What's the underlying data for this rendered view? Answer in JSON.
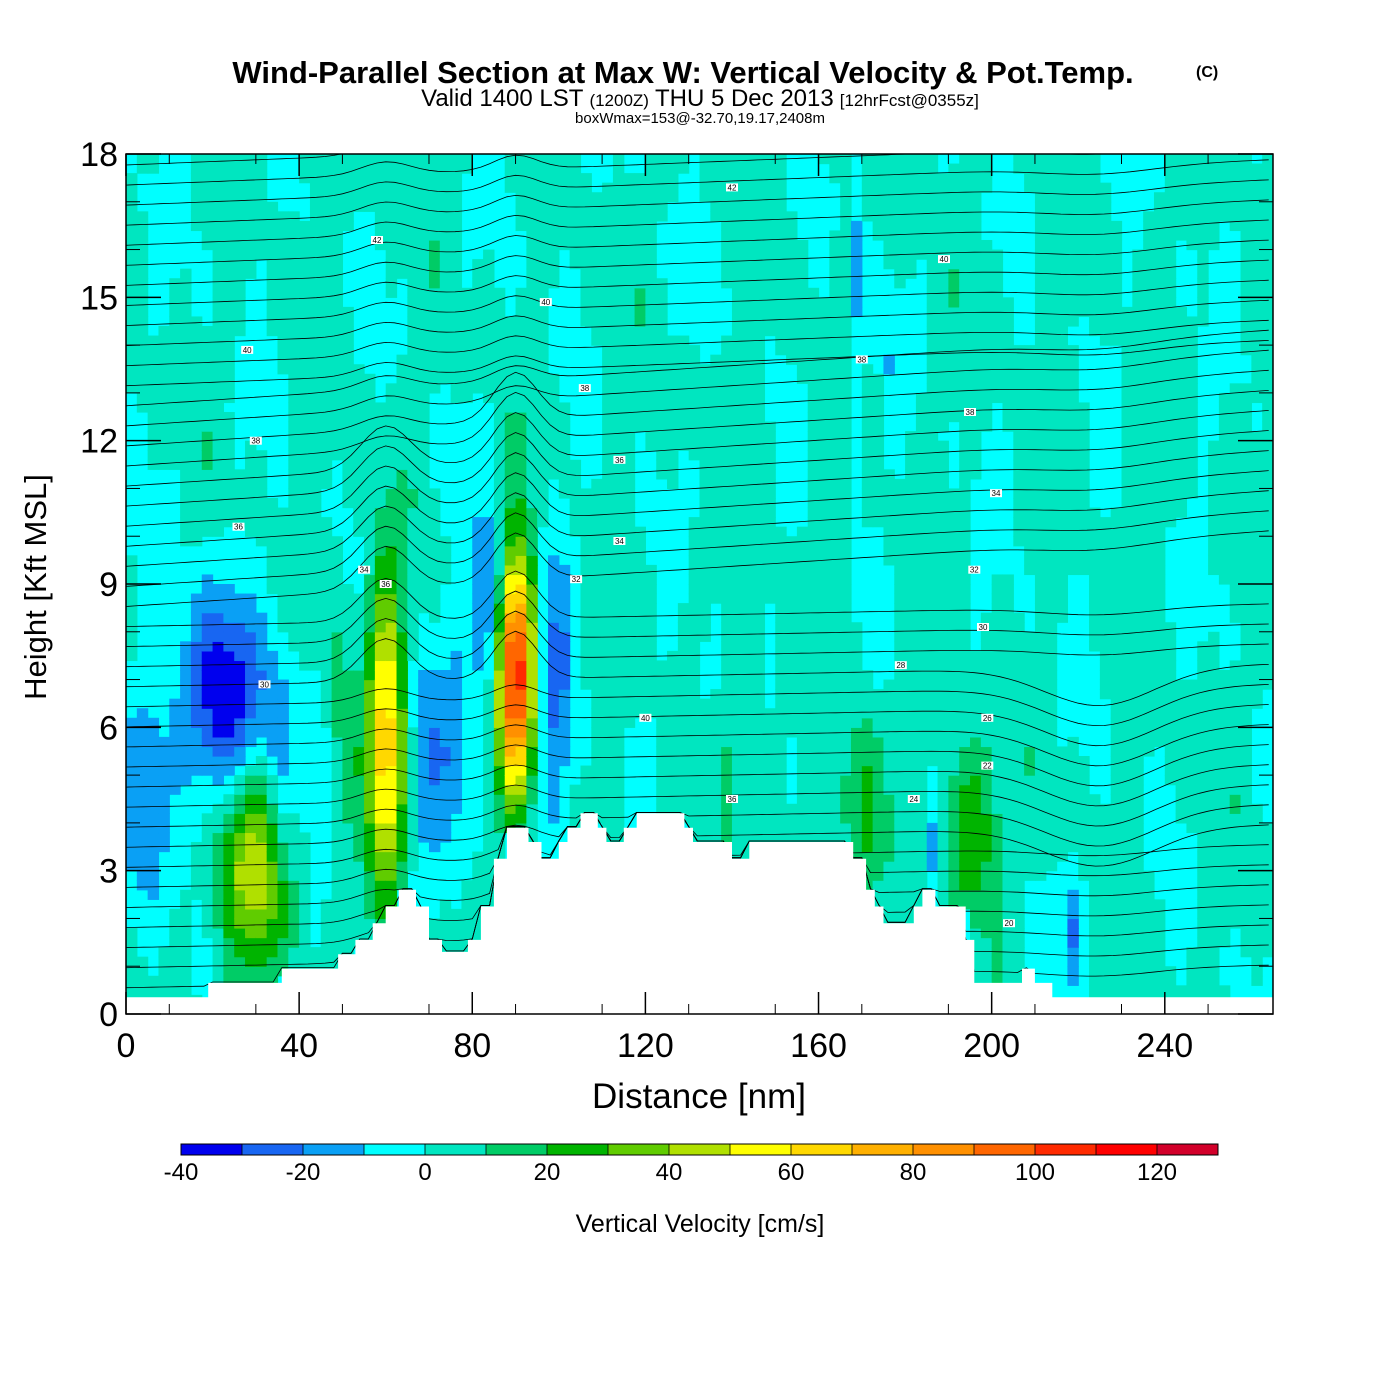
{
  "chart_data": {
    "type": "contour-cross-section",
    "title": "Wind-Parallel Section at Max W: Vertical Velocity & Pot.Temp.",
    "title_mark": "(C)",
    "subtitle_parts": {
      "valid": "Valid 1400 LST",
      "utc": "(1200Z)",
      "date": "THU 5 Dec 2013",
      "fcst": "[12hrFcst@0355z]"
    },
    "subsubtitle": "boxWmax=153@-32.70,19.17,2408m",
    "xlabel": "Distance [nm]",
    "ylabel": "Height [Kft MSL]",
    "xlim": [
      0,
      265
    ],
    "ylim": [
      0,
      18
    ],
    "x_ticks": [
      0,
      40,
      80,
      120,
      160,
      200,
      240
    ],
    "x_tick_labels": [
      "0",
      "40",
      "80",
      "120",
      "160",
      "200",
      "240"
    ],
    "y_ticks": [
      0,
      3,
      6,
      9,
      12,
      15,
      18
    ],
    "y_tick_labels": [
      "0",
      "3",
      "6",
      "9",
      "12",
      "15",
      "18"
    ],
    "colorbar": {
      "label": "Vertical Velocity [cm/s]",
      "levels": [
        -40,
        -30,
        -20,
        -10,
        0,
        10,
        20,
        30,
        40,
        50,
        60,
        70,
        80,
        90,
        100,
        110,
        120,
        130
      ],
      "colors": [
        "#0000ee",
        "#1866f2",
        "#0aa0f5",
        "#00ffff",
        "#00e6c0",
        "#00cc66",
        "#00b400",
        "#60cc00",
        "#b0e000",
        "#ffff00",
        "#ffd800",
        "#ffb000",
        "#ff9000",
        "#ff6600",
        "#ff2a00",
        "#ff0000",
        "#d2002a"
      ],
      "tick_values": [
        -40,
        -20,
        0,
        20,
        40,
        60,
        80,
        100,
        120
      ],
      "tick_labels": [
        "-40",
        "-20",
        "0",
        "20",
        "40",
        "60",
        "80",
        "100",
        "120"
      ]
    },
    "updrafts": [
      {
        "x": 29,
        "z": 3.1,
        "w": 45,
        "sx": 6,
        "sz": 1.6
      },
      {
        "x": 60,
        "z": 5.8,
        "w": 62,
        "sx": 3.2,
        "sz": 2.4
      },
      {
        "x": 90,
        "z": 7.2,
        "w": 110,
        "sx": 3.0,
        "sz": 1.8
      },
      {
        "x": 195,
        "z": 3.8,
        "w": 32,
        "sx": 4.5,
        "sz": 1.3
      },
      {
        "x": 170,
        "z": 4.0,
        "w": 22,
        "sx": 4,
        "sz": 1.5
      },
      {
        "x": 49,
        "z": 5.5,
        "w": 14,
        "sx": 3,
        "sz": 2.5
      },
      {
        "x": 140,
        "z": 5.0,
        "w": 10,
        "sx": 6,
        "sz": 2.5
      }
    ],
    "downdrafts": [
      {
        "x": 22,
        "z": 6.5,
        "w": -38,
        "sx": 8,
        "sz": 1.6
      },
      {
        "x": 36,
        "z": 5.0,
        "w": -15,
        "sx": 3,
        "sz": 2.0
      },
      {
        "x": 5,
        "z": 4.0,
        "w": -18,
        "sx": 4,
        "sz": 2.0
      },
      {
        "x": 84,
        "z": 8.3,
        "w": -30,
        "sx": 3,
        "sz": 1.5
      },
      {
        "x": 99,
        "z": 6.5,
        "w": -22,
        "sx": 3,
        "sz": 2.5
      },
      {
        "x": 75,
        "z": 5.5,
        "w": -15,
        "sx": 4,
        "sz": 2.0
      },
      {
        "x": 68,
        "z": 5.0,
        "w": -14,
        "sx": 2.5,
        "sz": 2.0
      },
      {
        "x": 45,
        "z": 5.0,
        "w": -12,
        "sx": 2.5,
        "sz": 1.8
      },
      {
        "x": 135,
        "z": 5.5,
        "w": -14,
        "sx": 2.5,
        "sz": 1.8
      },
      {
        "x": 187,
        "z": 3.5,
        "w": -25,
        "sx": 1.5,
        "sz": 1.0
      },
      {
        "x": 219,
        "z": 1.8,
        "w": -18,
        "sx": 1.5,
        "sz": 0.8
      },
      {
        "x": 169,
        "z": 15.5,
        "w": -15,
        "sx": 1.3,
        "sz": 2.5
      },
      {
        "x": 177,
        "z": 13.5,
        "w": -10,
        "sx": 1.0,
        "sz": 1.0
      }
    ],
    "terrain_profile_kft": [
      [
        0,
        0.35
      ],
      [
        19,
        0.35
      ],
      [
        19,
        0.65
      ],
      [
        36,
        0.65
      ],
      [
        36,
        0.95
      ],
      [
        49,
        0.95
      ],
      [
        49,
        1.25
      ],
      [
        53,
        1.25
      ],
      [
        53,
        1.55
      ],
      [
        57,
        1.55
      ],
      [
        57,
        1.9
      ],
      [
        60,
        1.9
      ],
      [
        60,
        2.25
      ],
      [
        63,
        2.25
      ],
      [
        63,
        2.6
      ],
      [
        67,
        2.6
      ],
      [
        67,
        2.25
      ],
      [
        70,
        2.25
      ],
      [
        70,
        1.55
      ],
      [
        73,
        1.55
      ],
      [
        73,
        1.3
      ],
      [
        79,
        1.3
      ],
      [
        79,
        1.55
      ],
      [
        82,
        1.55
      ],
      [
        82,
        2.25
      ],
      [
        85,
        2.25
      ],
      [
        85,
        3.25
      ],
      [
        88,
        3.25
      ],
      [
        88,
        3.9
      ],
      [
        93,
        3.9
      ],
      [
        93,
        3.6
      ],
      [
        96,
        3.6
      ],
      [
        96,
        3.25
      ],
      [
        100,
        3.25
      ],
      [
        100,
        3.6
      ],
      [
        102,
        3.6
      ],
      [
        102,
        3.9
      ],
      [
        105,
        3.9
      ],
      [
        105,
        4.2
      ],
      [
        109,
        4.2
      ],
      [
        109,
        3.9
      ],
      [
        111,
        3.9
      ],
      [
        111,
        3.6
      ],
      [
        115,
        3.6
      ],
      [
        115,
        3.9
      ],
      [
        118,
        3.9
      ],
      [
        118,
        4.2
      ],
      [
        129,
        4.2
      ],
      [
        129,
        3.9
      ],
      [
        131,
        3.9
      ],
      [
        131,
        3.6
      ],
      [
        140,
        3.6
      ],
      [
        140,
        3.25
      ],
      [
        144,
        3.25
      ],
      [
        144,
        3.6
      ],
      [
        168,
        3.6
      ],
      [
        168,
        3.25
      ],
      [
        171,
        3.25
      ],
      [
        171,
        2.6
      ],
      [
        173,
        2.6
      ],
      [
        173,
        2.25
      ],
      [
        175,
        2.25
      ],
      [
        175,
        1.9
      ],
      [
        182,
        1.9
      ],
      [
        182,
        2.25
      ],
      [
        184,
        2.25
      ],
      [
        184,
        2.6
      ],
      [
        187,
        2.6
      ],
      [
        187,
        2.25
      ],
      [
        194,
        2.25
      ],
      [
        194,
        1.55
      ],
      [
        196,
        1.55
      ],
      [
        196,
        0.65
      ],
      [
        207,
        0.65
      ],
      [
        207,
        0.95
      ],
      [
        210,
        0.95
      ],
      [
        210,
        0.65
      ],
      [
        214,
        0.65
      ],
      [
        214,
        0.35
      ],
      [
        265,
        0.35
      ]
    ],
    "theta_levels": [
      20,
      22,
      24,
      26,
      28,
      30,
      32,
      34,
      36,
      38,
      40,
      42
    ],
    "theta_labels": [
      {
        "text": "42",
        "x": 140,
        "z": 17.3
      },
      {
        "text": "42",
        "x": 58,
        "z": 16.2
      },
      {
        "text": "40",
        "x": 189,
        "z": 15.8
      },
      {
        "text": "40",
        "x": 97,
        "z": 14.9
      },
      {
        "text": "40",
        "x": 28,
        "z": 13.9
      },
      {
        "text": "38",
        "x": 170,
        "z": 13.7
      },
      {
        "text": "38",
        "x": 106,
        "z": 13.1
      },
      {
        "text": "38",
        "x": 195,
        "z": 12.6
      },
      {
        "text": "38",
        "x": 30,
        "z": 12.0
      },
      {
        "text": "36",
        "x": 114,
        "z": 11.6
      },
      {
        "text": "34",
        "x": 201,
        "z": 10.9
      },
      {
        "text": "36",
        "x": 26,
        "z": 10.2
      },
      {
        "text": "34",
        "x": 114,
        "z": 9.9
      },
      {
        "text": "34",
        "x": 55,
        "z": 9.3
      },
      {
        "text": "36",
        "x": 60,
        "z": 9.0
      },
      {
        "text": "32",
        "x": 104,
        "z": 9.1
      },
      {
        "text": "32",
        "x": 196,
        "z": 9.3
      },
      {
        "text": "30",
        "x": 198,
        "z": 8.1
      },
      {
        "text": "28",
        "x": 179,
        "z": 7.3
      },
      {
        "text": "30",
        "x": 32,
        "z": 6.9
      },
      {
        "text": "40",
        "x": 120,
        "z": 6.2
      },
      {
        "text": "26",
        "x": 199,
        "z": 6.2
      },
      {
        "text": "22",
        "x": 199,
        "z": 5.2
      },
      {
        "text": "36",
        "x": 140,
        "z": 4.5
      },
      {
        "text": "24",
        "x": 182,
        "z": 4.5
      },
      {
        "text": "20",
        "x": 204,
        "z": 1.9
      }
    ]
  }
}
